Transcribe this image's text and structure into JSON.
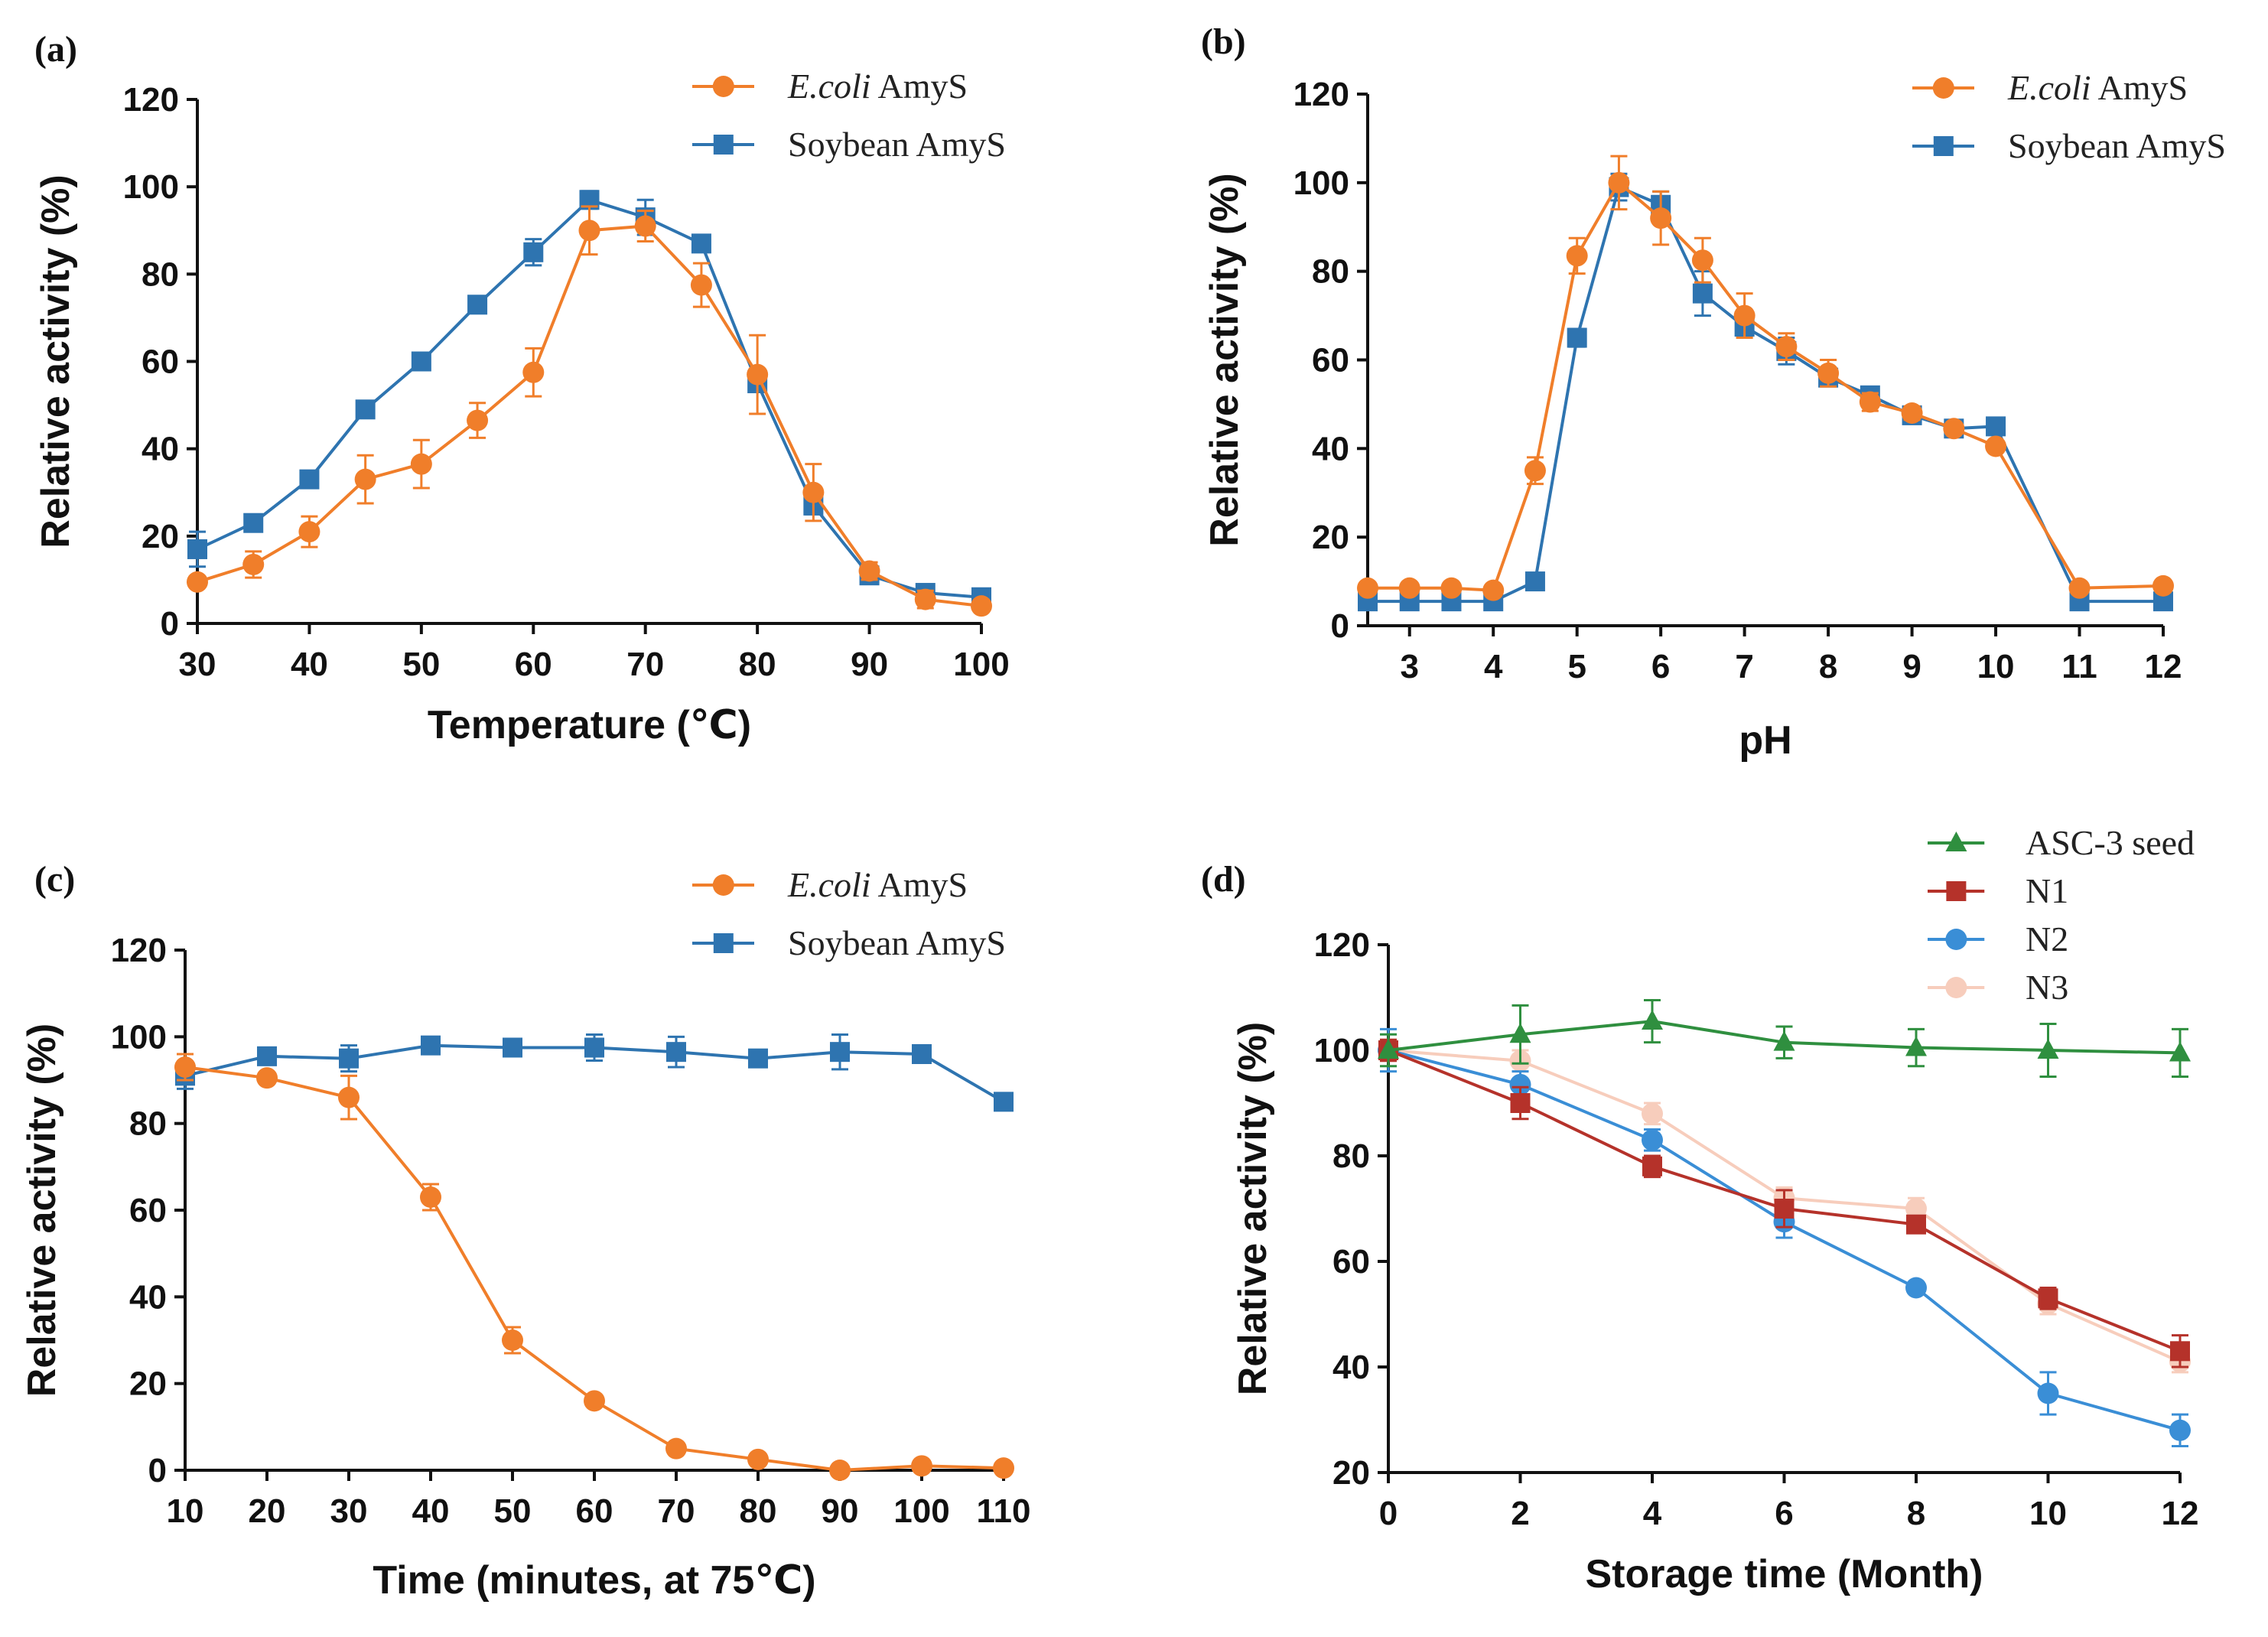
{
  "chart_data": [
    {
      "panel": "(a)",
      "type": "line",
      "xlabel": "Temperature (℃)",
      "ylabel": "Relative activity (%)",
      "xlim": [
        30,
        100
      ],
      "ylim": [
        0,
        120
      ],
      "xticks": [
        30,
        40,
        50,
        60,
        70,
        80,
        90,
        100
      ],
      "yticks": [
        0,
        20,
        40,
        60,
        80,
        100,
        120
      ],
      "legend_position": "top-right",
      "series": [
        {
          "name": "Soybean AmyS",
          "legend_italic": "",
          "legend_rest": "Soybean AmyS",
          "color": "#2e74b0",
          "marker": "square",
          "x": [
            30,
            35,
            40,
            45,
            50,
            55,
            60,
            65,
            70,
            75,
            80,
            85,
            90,
            95,
            100
          ],
          "y": [
            17,
            23,
            33,
            49,
            60,
            73,
            85,
            97,
            93,
            87,
            55,
            27,
            11,
            7,
            6
          ],
          "err": [
            4,
            1,
            1,
            1,
            1,
            1,
            3,
            2,
            4,
            1,
            2,
            2,
            1,
            1,
            1
          ]
        },
        {
          "name": "E.coli AmyS",
          "legend_italic": "E.coli",
          "legend_rest": " AmyS",
          "color": "#f07e2a",
          "marker": "circle",
          "x": [
            30,
            35,
            40,
            45,
            50,
            55,
            60,
            65,
            70,
            75,
            80,
            85,
            90,
            95,
            100
          ],
          "y": [
            9.5,
            13.5,
            21,
            33,
            36.5,
            46.5,
            57.5,
            90,
            91,
            77.5,
            57,
            30,
            12,
            5.5,
            4
          ],
          "err": [
            1,
            3,
            3.5,
            5.5,
            5.5,
            4,
            5.5,
            5.5,
            3.5,
            5,
            9,
            6.5,
            2,
            2,
            1
          ]
        }
      ]
    },
    {
      "panel": "(b)",
      "type": "line",
      "xlabel": "pH",
      "ylabel": "Relative activity (%)",
      "xlim": [
        2.5,
        12
      ],
      "ylim": [
        0,
        120
      ],
      "xticks": [
        3,
        4,
        5,
        6,
        7,
        8,
        9,
        10,
        11,
        12
      ],
      "yticks": [
        0,
        20,
        40,
        60,
        80,
        100,
        120
      ],
      "legend_position": "top-right",
      "series": [
        {
          "name": "Soybean AmyS",
          "legend_italic": "",
          "legend_rest": "Soybean AmyS",
          "color": "#2e74b0",
          "marker": "square",
          "x": [
            2.5,
            3,
            3.5,
            4,
            4.5,
            5,
            5.5,
            6,
            6.5,
            7,
            7.5,
            8,
            8.5,
            9,
            9.5,
            10,
            11,
            12
          ],
          "y": [
            5.5,
            5.5,
            5.5,
            5.5,
            10,
            65,
            99,
            95,
            75,
            67.5,
            62,
            56,
            52,
            47.5,
            44.5,
            45,
            5.5,
            5.5
          ],
          "err": [
            0.5,
            0.5,
            0.5,
            0.5,
            1,
            2,
            3,
            3,
            5,
            2,
            3,
            1,
            1,
            1,
            1,
            1,
            0.5,
            0.5
          ]
        },
        {
          "name": "E.coli AmyS",
          "legend_italic": "E.coli",
          "legend_rest": " AmyS",
          "color": "#f07e2a",
          "marker": "circle",
          "x": [
            2.5,
            3,
            3.5,
            4,
            4.5,
            5,
            5.5,
            6,
            6.5,
            7,
            7.5,
            8,
            8.5,
            9,
            9.5,
            10,
            11,
            12
          ],
          "y": [
            8.5,
            8.5,
            8.5,
            8,
            35,
            83.5,
            100,
            92,
            82.5,
            70,
            63,
            57,
            50.5,
            48,
            44.5,
            40.5,
            8.5,
            9
          ],
          "err": [
            0.5,
            0.5,
            0.5,
            0.5,
            3,
            4,
            6,
            6,
            5,
            5,
            3,
            3,
            2,
            1.5,
            1,
            1,
            0.5,
            0.5
          ]
        }
      ]
    },
    {
      "panel": "(c)",
      "type": "line",
      "xlabel": "Time (minutes, at 75℃)",
      "ylabel": "Relative activity (%)",
      "xlim": [
        10,
        110
      ],
      "ylim": [
        0,
        120
      ],
      "xticks": [
        10,
        20,
        30,
        40,
        50,
        60,
        70,
        80,
        90,
        100,
        110
      ],
      "yticks": [
        0,
        20,
        40,
        60,
        80,
        100,
        120
      ],
      "legend_position": "top-right",
      "series": [
        {
          "name": "Soybean AmyS",
          "legend_italic": "",
          "legend_rest": "Soybean AmyS",
          "color": "#2e74b0",
          "marker": "square",
          "x": [
            10,
            20,
            30,
            40,
            50,
            60,
            70,
            80,
            90,
            100,
            110
          ],
          "y": [
            91,
            95.5,
            95,
            98,
            97.5,
            97.5,
            96.5,
            95,
            96.5,
            96,
            85
          ],
          "err": [
            3,
            1.5,
            3,
            1,
            1,
            3,
            3.5,
            1,
            4,
            1,
            1
          ]
        },
        {
          "name": "E.coli AmyS",
          "legend_italic": "E.coli",
          "legend_rest": " AmyS",
          "color": "#f07e2a",
          "marker": "circle",
          "x": [
            10,
            20,
            30,
            40,
            50,
            60,
            70,
            80,
            90,
            100,
            110
          ],
          "y": [
            93,
            90.5,
            86,
            63,
            30,
            16,
            5,
            2.5,
            0,
            1,
            0.5
          ],
          "err": [
            3,
            1,
            5,
            3,
            3,
            1,
            0.5,
            0.5,
            0.3,
            0.3,
            0.3
          ]
        }
      ]
    },
    {
      "panel": "(d)",
      "type": "line",
      "xlabel": "Storage time (Month)",
      "ylabel": "Relative activity (%)",
      "xlim": [
        0,
        12
      ],
      "ylim": [
        20,
        120
      ],
      "xticks": [
        0,
        2,
        4,
        6,
        8,
        10,
        12
      ],
      "yticks": [
        20,
        40,
        60,
        80,
        100,
        120
      ],
      "legend_position": "top-right",
      "series": [
        {
          "name": "N3",
          "legend_italic": "",
          "legend_rest": "N3",
          "color": "#f7cdbc",
          "marker": "circle",
          "x": [
            0,
            2,
            4,
            6,
            8,
            10,
            12
          ],
          "y": [
            100,
            98,
            88,
            72,
            70,
            52,
            41
          ],
          "err": [
            2,
            2,
            2,
            2,
            2,
            2,
            2
          ]
        },
        {
          "name": "N2",
          "legend_italic": "",
          "legend_rest": "N2",
          "color": "#3a8ed6",
          "marker": "circle",
          "x": [
            0,
            2,
            4,
            6,
            8,
            10,
            12
          ],
          "y": [
            100,
            93.5,
            83,
            67.5,
            55,
            35,
            28
          ],
          "err": [
            4,
            2.5,
            2,
            3,
            0.5,
            4,
            3
          ]
        },
        {
          "name": "N1",
          "legend_italic": "",
          "legend_rest": "N1",
          "color": "#b5322a",
          "marker": "square",
          "x": [
            0,
            2,
            4,
            6,
            8,
            10,
            12
          ],
          "y": [
            100,
            90,
            78,
            70,
            67,
            53,
            43
          ],
          "err": [
            2,
            3,
            2,
            3.5,
            1,
            2,
            3
          ]
        },
        {
          "name": "ASC-3 seed",
          "legend_italic": "",
          "legend_rest": "ASC-3 seed",
          "color": "#2f8f3f",
          "marker": "triangle",
          "x": [
            0,
            2,
            4,
            6,
            8,
            10,
            12
          ],
          "y": [
            100,
            103,
            105.5,
            101.5,
            100.5,
            100,
            99.5
          ],
          "err": [
            3,
            5.5,
            4,
            3,
            3.5,
            5,
            4.5
          ]
        }
      ]
    }
  ]
}
